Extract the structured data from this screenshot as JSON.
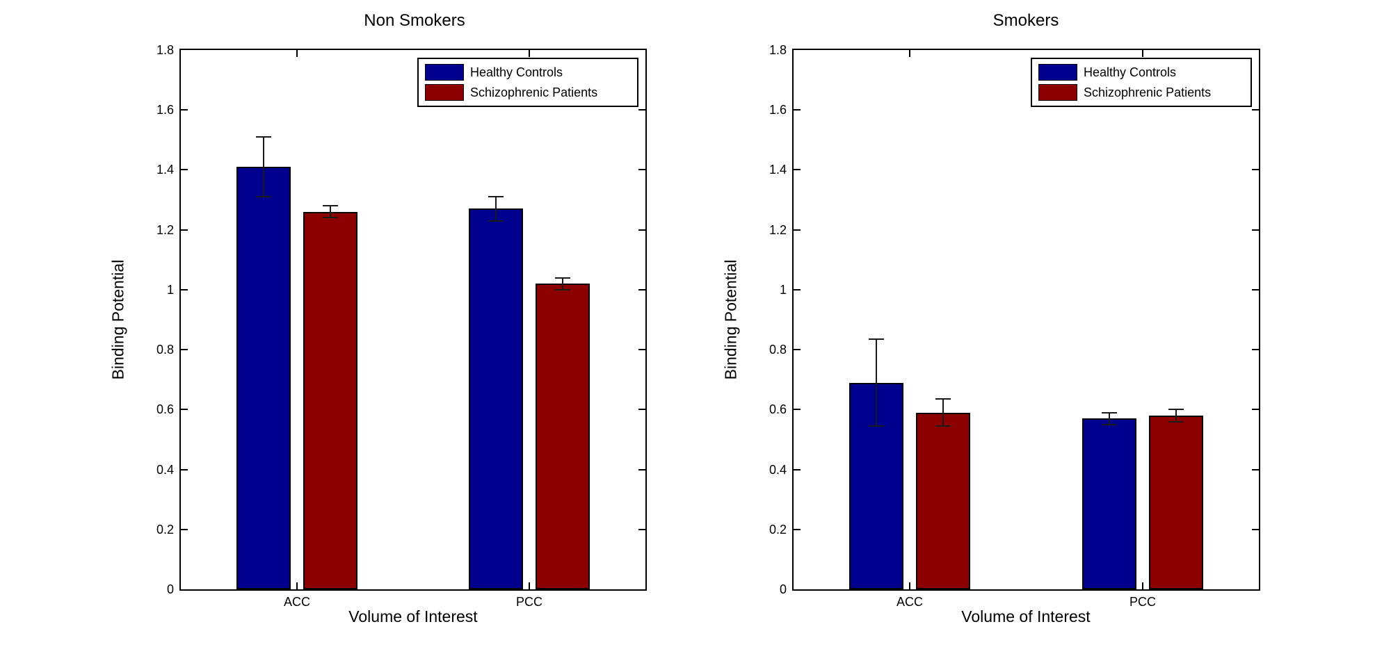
{
  "figure": {
    "background": "#FFFFFF"
  },
  "colors": {
    "healthy_controls": "#00008F",
    "schizophrenic_patients": "#8C0000",
    "axis": "#000000",
    "error_bar": "#1A1A1A"
  },
  "chart_data": [
    {
      "type": "bar",
      "title": "Non Smokers",
      "xlabel": "Volume of Interest",
      "ylabel": "Binding Potential",
      "categories": [
        "ACC",
        "PCC"
      ],
      "series": [
        {
          "name": "Healthy Controls",
          "color": "#00008F",
          "values": [
            1.41,
            1.27
          ],
          "errors": [
            0.1,
            0.04
          ]
        },
        {
          "name": "Schizophrenic Patients",
          "color": "#8C0000",
          "values": [
            1.26,
            1.02
          ],
          "errors": [
            0.02,
            0.02
          ]
        }
      ],
      "ylim": [
        0,
        1.8
      ],
      "ytick_step": 0.2,
      "ytick_labels": [
        "0",
        "0.2",
        "0.4",
        "0.6",
        "0.8",
        "1",
        "1.2",
        "1.4",
        "1.6",
        "1.8"
      ],
      "grid": false,
      "legend_position": "top-right"
    },
    {
      "type": "bar",
      "title": "Smokers",
      "xlabel": "Volume of Interest",
      "ylabel": "Binding Potential",
      "categories": [
        "ACC",
        "PCC"
      ],
      "series": [
        {
          "name": "Healthy Controls",
          "color": "#00008F",
          "values": [
            0.69,
            0.57
          ],
          "errors": [
            0.145,
            0.02
          ]
        },
        {
          "name": "Schizophrenic Patients",
          "color": "#8C0000",
          "values": [
            0.59,
            0.58
          ],
          "errors": [
            0.045,
            0.02
          ]
        }
      ],
      "ylim": [
        0,
        1.8
      ],
      "ytick_step": 0.2,
      "ytick_labels": [
        "0",
        "0.2",
        "0.4",
        "0.6",
        "0.8",
        "1",
        "1.2",
        "1.4",
        "1.6",
        "1.8"
      ],
      "grid": false,
      "legend_position": "top-right"
    }
  ]
}
